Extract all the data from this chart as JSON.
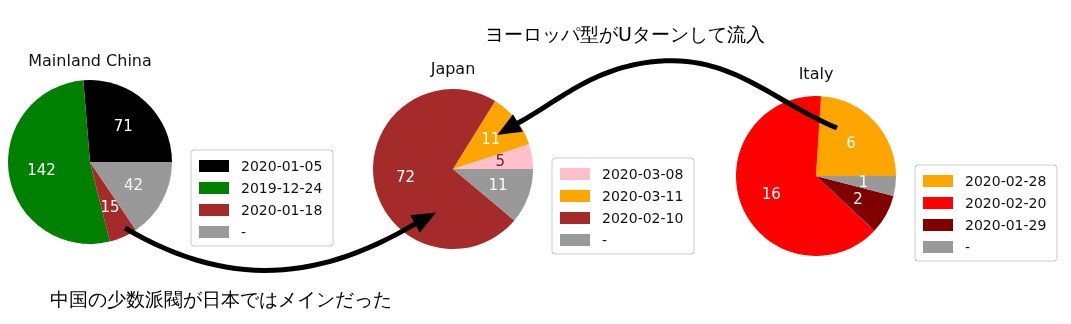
{
  "chart_data": [
    {
      "type": "pie",
      "title": "Mainland China",
      "categories": [
        "2020-01-05",
        "2019-12-24",
        "2020-01-18",
        "-"
      ],
      "values": [
        71,
        142,
        15,
        42
      ],
      "colors": [
        "#000000",
        "#008000",
        "#a52a2a",
        "#999999"
      ],
      "data_labels": true,
      "legend": "right"
    },
    {
      "type": "pie",
      "title": "Japan",
      "categories": [
        "2020-03-08",
        "2020-03-11",
        "2020-02-10",
        "-"
      ],
      "values": [
        5,
        11,
        72,
        11
      ],
      "colors": [
        "#ffc0cb",
        "#ffa500",
        "#a52a2a",
        "#999999"
      ],
      "data_labels": true,
      "legend": "right",
      "annotations": [
        "ヨーロッパ型がUターンして流入",
        "中国の少数派閥が日本ではメインだった"
      ]
    },
    {
      "type": "pie",
      "title": "Italy",
      "categories": [
        "2020-02-28",
        "2020-02-20",
        "2020-01-29",
        "-"
      ],
      "values": [
        6,
        16,
        2,
        1
      ],
      "colors": [
        "#ffa500",
        "#ff0000",
        "#800000",
        "#999999"
      ],
      "data_labels": true,
      "legend": "right"
    }
  ]
}
